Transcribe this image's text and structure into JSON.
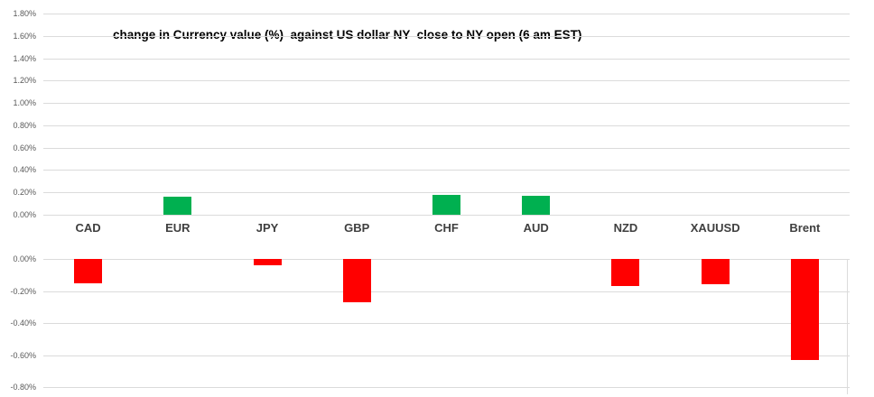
{
  "chart_data": {
    "type": "bar",
    "title": "change in Currency value (%)  against US dollar NY  close to NY open (6 am EST)",
    "categories": [
      "CAD",
      "EUR",
      "JPY",
      "GBP",
      "CHF",
      "AUD",
      "NZD",
      "XAUUSD",
      "Brent"
    ],
    "values": [
      -0.15,
      0.16,
      -0.04,
      -0.27,
      0.18,
      0.17,
      -0.17,
      -0.16,
      -0.63
    ],
    "unit": "%",
    "colors": {
      "positive_bar": "#00B050",
      "negative_bar": "#FF0000",
      "gridline": "#DBDBDB",
      "tick_text": "#595959",
      "category_text": "#3F3F3F",
      "title_text": "#000000"
    },
    "legend": "none",
    "grid": true,
    "layout_note": "split axis: positive panel above category labels, negative panel below",
    "top_axis": {
      "min": 0.0,
      "max": 1.8,
      "step": 0.2,
      "ticks": [
        "1.80%",
        "1.60%",
        "1.40%",
        "1.20%",
        "1.00%",
        "0.80%",
        "0.60%",
        "0.40%",
        "0.20%",
        "0.00%"
      ]
    },
    "bottom_axis": {
      "min": -0.8,
      "max": 0.0,
      "step": 0.2,
      "ticks": [
        "0.00%",
        "-0.20%",
        "-0.40%",
        "-0.60%",
        "-0.80%"
      ]
    }
  }
}
